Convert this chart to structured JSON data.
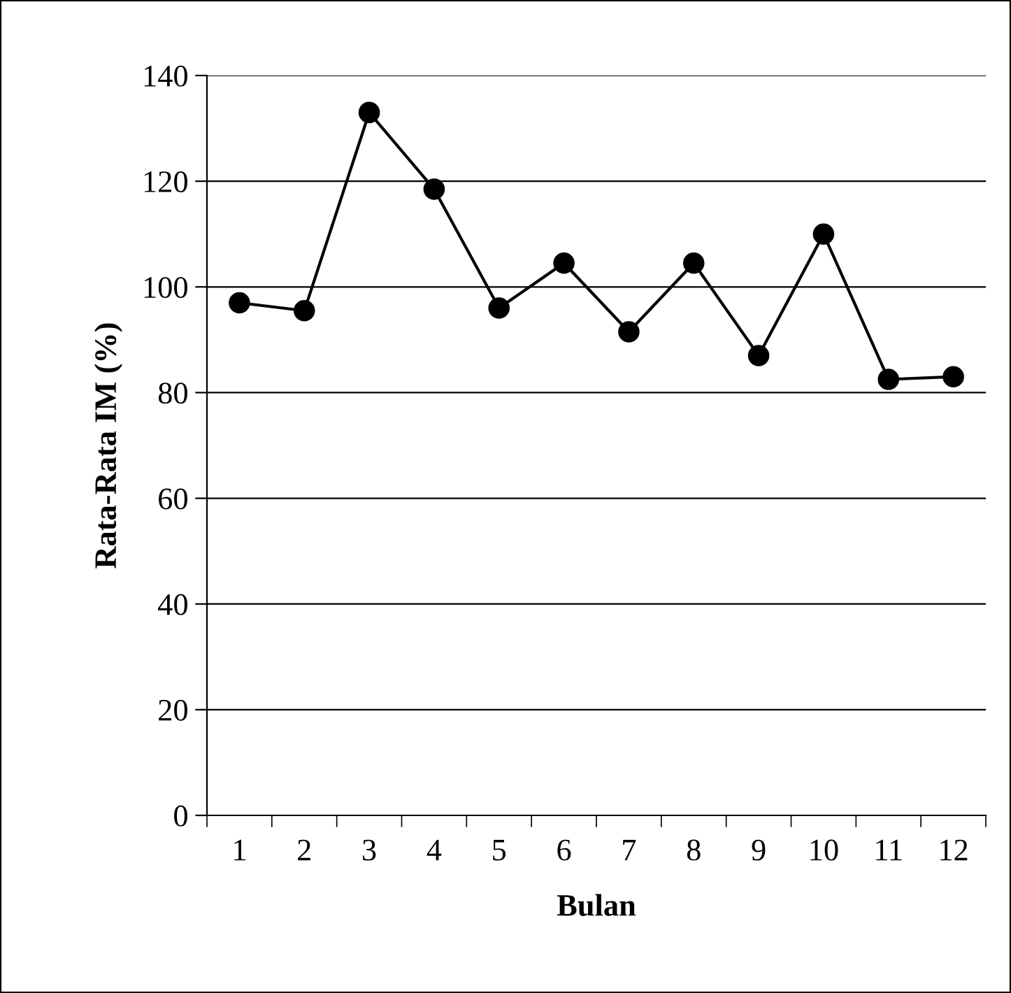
{
  "chart_data": {
    "type": "line",
    "xlabel": "Bulan",
    "ylabel": "Rata-Rata IM (%)",
    "categories": [
      "1",
      "2",
      "3",
      "4",
      "5",
      "6",
      "7",
      "8",
      "9",
      "10",
      "11",
      "12"
    ],
    "series": [
      {
        "color": "#000000",
        "values": [
          97,
          95.5,
          133,
          118.5,
          96,
          104.5,
          91.5,
          104.5,
          87,
          110,
          82.5,
          83
        ]
      }
    ],
    "ylim": [
      0,
      140
    ],
    "yticks": [
      0,
      20,
      40,
      60,
      80,
      100,
      120,
      140
    ],
    "grid": "y",
    "marker": "circle",
    "line_style": "solid",
    "legend": false
  }
}
